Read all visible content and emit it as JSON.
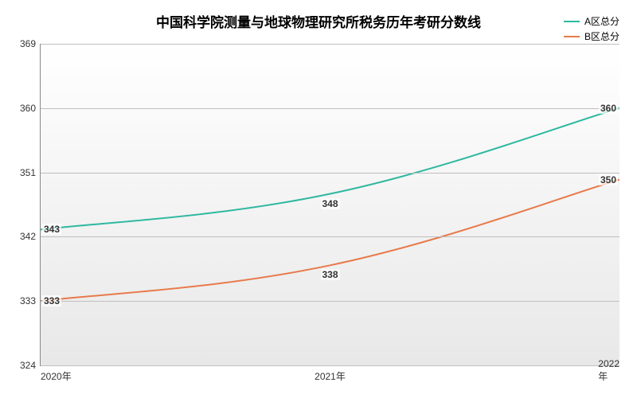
{
  "chart": {
    "type": "line",
    "title": "中国科学院测量与地球物理研究所税务历年考研分数线",
    "title_fontsize": 17,
    "background_gradient_top": "#ffffff",
    "background_gradient_bottom": "#e8e8e8",
    "grid_color": "#bfbfbf",
    "axis_color": "#888888",
    "text_color": "#333333",
    "ylim": [
      324,
      369
    ],
    "yticks": [
      324,
      333,
      342,
      351,
      360,
      369
    ],
    "xcategories": [
      "2020年",
      "2021年",
      "2022年"
    ],
    "legend": [
      {
        "label": "A区总分",
        "color": "#2fb8a0"
      },
      {
        "label": "B区总分",
        "color": "#e87a4a"
      }
    ],
    "series": [
      {
        "name": "A区总分",
        "color": "#2fb8a0",
        "line_width": 2,
        "values": [
          343,
          348,
          360
        ]
      },
      {
        "name": "B区总分",
        "color": "#e87a4a",
        "line_width": 2,
        "values": [
          333,
          338,
          350
        ]
      }
    ],
    "label_fontsize": 12
  }
}
